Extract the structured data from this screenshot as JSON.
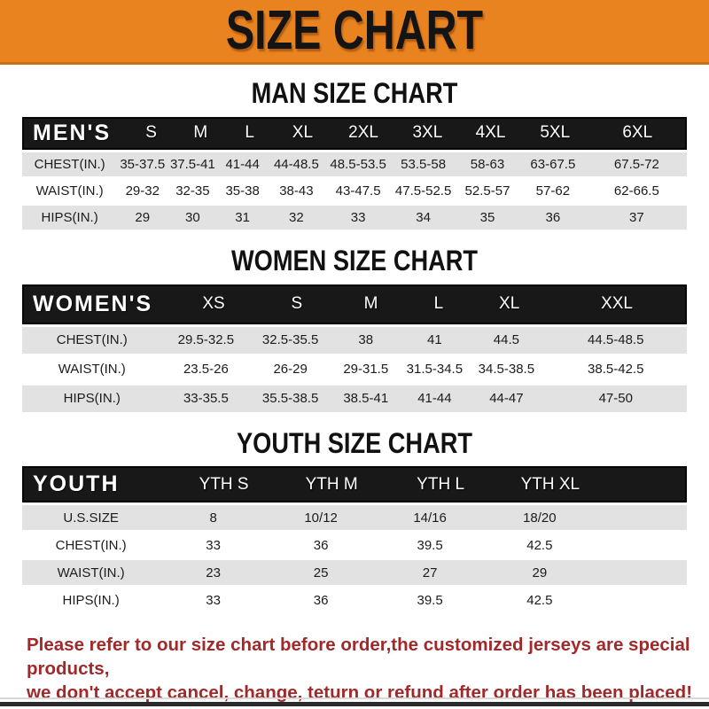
{
  "banner": {
    "title": "SIZE CHART"
  },
  "colors": {
    "accent_orange": "#E8831F",
    "header_band_black": "#181818",
    "row_alt_gray": "#E2E2E2",
    "note_red": "#A1292A"
  },
  "sections": [
    {
      "heading": "MAN SIZE CHART",
      "table_label": "MEN'S",
      "columns": [
        "S",
        "M",
        "L",
        "XL",
        "2XL",
        "3XL",
        "4XL",
        "5XL",
        "6XL"
      ],
      "rows": [
        {
          "label": "CHEST(IN.)",
          "values": [
            "35-37.5",
            "37.5-41",
            "41-44",
            "44-48.5",
            "48.5-53.5",
            "53.5-58",
            "58-63",
            "63-67.5",
            "67.5-72"
          ]
        },
        {
          "label": "WAIST(IN.)",
          "values": [
            "29-32",
            "32-35",
            "35-38",
            "38-43",
            "43-47.5",
            "47.5-52.5",
            "52.5-57",
            "57-62",
            "62-66.5"
          ]
        },
        {
          "label": "HIPS(IN.)",
          "values": [
            "29",
            "30",
            "31",
            "32",
            "33",
            "34",
            "35",
            "36",
            "37"
          ]
        }
      ]
    },
    {
      "heading": "WOMEN SIZE CHART",
      "table_label": "WOMEN'S",
      "columns": [
        "XS",
        "S",
        "M",
        "L",
        "XL",
        "XXL"
      ],
      "rows": [
        {
          "label": "CHEST(IN.)",
          "values": [
            "29.5-32.5",
            "32.5-35.5",
            "38",
            "41",
            "44.5",
            "44.5-48.5"
          ]
        },
        {
          "label": "WAIST(IN.)",
          "values": [
            "23.5-26",
            "26-29",
            "29-31.5",
            "31.5-34.5",
            "34.5-38.5",
            "38.5-42.5"
          ]
        },
        {
          "label": "HIPS(IN.)",
          "values": [
            "33-35.5",
            "35.5-38.5",
            "38.5-41",
            "41-44",
            "44-47",
            "47-50"
          ]
        }
      ]
    },
    {
      "heading": "YOUTH SIZE CHART",
      "table_label": "YOUTH",
      "columns": [
        "YTH S",
        "YTH M",
        "YTH L",
        "YTH XL"
      ],
      "rows": [
        {
          "label": "U.S.SIZE",
          "values": [
            "8",
            "10/12",
            "14/16",
            "18/20"
          ]
        },
        {
          "label": "CHEST(IN.)",
          "values": [
            "33",
            "36",
            "39.5",
            "42.5"
          ]
        },
        {
          "label": "WAIST(IN.)",
          "values": [
            "23",
            "25",
            "27",
            "29"
          ]
        },
        {
          "label": "HIPS(IN.)",
          "values": [
            "33",
            "36",
            "39.5",
            "42.5"
          ]
        }
      ]
    }
  ],
  "footer_note": {
    "lines": [
      "Please refer to our size chart before order,the customized jerseys are special products,",
      "we don't accept cancel, change, teturn or refund after order has been placed!"
    ]
  }
}
